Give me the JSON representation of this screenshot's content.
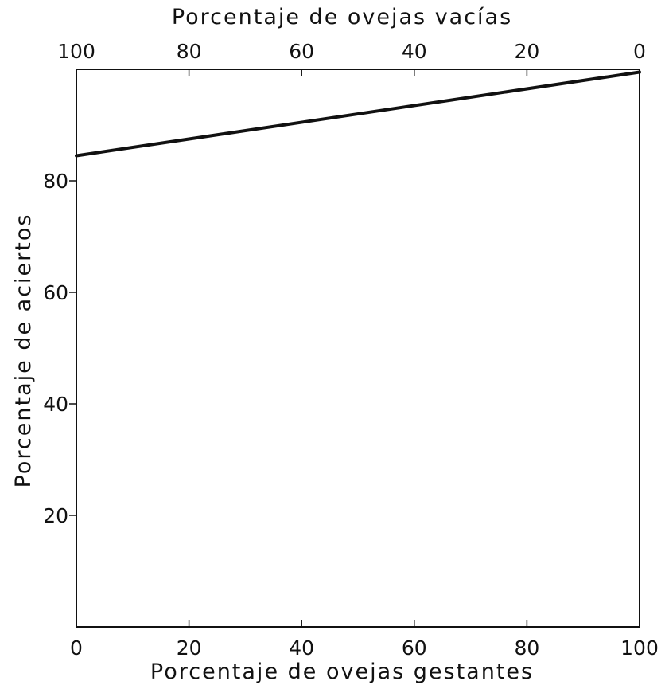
{
  "chart_data": {
    "type": "line",
    "title": "",
    "xlabel": "Porcentaje de ovejas gestantes",
    "x2label": "Porcentaje de ovejas vacías",
    "ylabel": "Porcentaje de aciertos",
    "xlim": [
      0,
      100
    ],
    "x2lim": [
      100,
      0
    ],
    "ylim": [
      0,
      100
    ],
    "grid": false,
    "legend": "none",
    "x_ticks": [
      "0",
      "20",
      "40",
      "60",
      "80",
      "100"
    ],
    "x_tick_values": [
      0,
      20,
      40,
      60,
      80,
      100
    ],
    "x2_ticks": [
      "100",
      "80",
      "60",
      "40",
      "20",
      "0"
    ],
    "x2_tick_values": [
      100,
      80,
      60,
      40,
      20,
      0
    ],
    "y_ticks": [
      "20",
      "40",
      "60",
      "80"
    ],
    "y_tick_values": [
      20,
      40,
      60,
      80
    ],
    "series": [
      {
        "x": [
          0,
          100
        ],
        "y": [
          84.5,
          99.5
        ]
      }
    ],
    "colors": {
      "line": "#111111",
      "axis": "#111111"
    }
  }
}
